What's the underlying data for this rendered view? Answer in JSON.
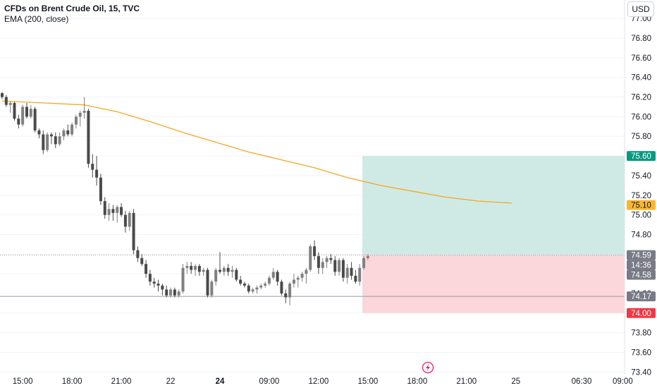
{
  "header": {
    "title": "CFDs on Brent Crude Oil, 15, TVC",
    "indicator": "EMA (200, close)"
  },
  "currency_button": "USD",
  "chart_data": {
    "type": "candlestick",
    "y_range": [
      73.35,
      77.05
    ],
    "y_ticks": [
      "77.00",
      "76.80",
      "76.60",
      "76.40",
      "76.20",
      "76.00",
      "75.80",
      "75.60",
      "75.40",
      "75.20",
      "75.00",
      "74.80",
      "74.60",
      "74.40",
      "74.20",
      "74.00",
      "73.80",
      "73.60",
      "73.40"
    ],
    "x_ticks": [
      {
        "label": "15:00",
        "bar": 5,
        "bold": false
      },
      {
        "label": "18:00",
        "bar": 17,
        "bold": false
      },
      {
        "label": "21:00",
        "bar": 29,
        "bold": false
      },
      {
        "label": "22",
        "bar": 41,
        "bold": false
      },
      {
        "label": "24",
        "bar": 53,
        "bold": true
      },
      {
        "label": "09:00",
        "bar": 65,
        "bold": false
      },
      {
        "label": "12:00",
        "bar": 77,
        "bold": false
      },
      {
        "label": "15:00",
        "bar": 89,
        "bold": false
      },
      {
        "label": "18:00",
        "bar": 101,
        "bold": false
      },
      {
        "label": "21:00",
        "bar": 113,
        "bold": false
      },
      {
        "label": "25",
        "bar": 125,
        "bold": false
      },
      {
        "label": "06:30",
        "bar": 141,
        "bold": false
      },
      {
        "label": "09:00",
        "bar": 151,
        "bold": false
      }
    ],
    "candles": [
      [
        76.24,
        76.25,
        76.18,
        76.2
      ],
      [
        76.2,
        76.22,
        76.1,
        76.12
      ],
      [
        76.12,
        76.16,
        76.04,
        76.14
      ],
      [
        76.14,
        76.15,
        75.96,
        75.98
      ],
      [
        75.98,
        76.02,
        75.88,
        75.92
      ],
      [
        75.92,
        76.12,
        75.9,
        76.1
      ],
      [
        76.1,
        76.14,
        75.98,
        76.0
      ],
      [
        76.0,
        76.12,
        75.98,
        76.08
      ],
      [
        76.08,
        76.1,
        75.84,
        75.86
      ],
      [
        75.86,
        75.88,
        75.78,
        75.82
      ],
      [
        75.82,
        75.86,
        75.62,
        75.66
      ],
      [
        75.66,
        75.84,
        75.64,
        75.82
      ],
      [
        75.82,
        75.84,
        75.72,
        75.8
      ],
      [
        75.8,
        75.84,
        75.68,
        75.72
      ],
      [
        75.72,
        75.84,
        75.7,
        75.8
      ],
      [
        75.8,
        75.88,
        75.76,
        75.86
      ],
      [
        75.86,
        75.92,
        75.8,
        75.82
      ],
      [
        75.82,
        75.94,
        75.8,
        75.92
      ],
      [
        75.92,
        76.02,
        75.88,
        76.0
      ],
      [
        76.0,
        76.06,
        75.9,
        76.04
      ],
      [
        76.04,
        76.2,
        75.98,
        76.06
      ],
      [
        76.06,
        76.08,
        75.48,
        75.52
      ],
      [
        75.52,
        75.62,
        75.38,
        75.46
      ],
      [
        75.46,
        75.6,
        75.3,
        75.38
      ],
      [
        75.38,
        75.42,
        75.1,
        75.14
      ],
      [
        75.14,
        75.18,
        74.96,
        75.0
      ],
      [
        75.0,
        75.12,
        74.94,
        75.06
      ],
      [
        75.06,
        75.1,
        74.94,
        75.02
      ],
      [
        75.02,
        75.1,
        74.92,
        75.08
      ],
      [
        75.08,
        75.12,
        74.98,
        75.0
      ],
      [
        75.0,
        75.04,
        74.82,
        74.88
      ],
      [
        74.88,
        75.04,
        74.84,
        75.02
      ],
      [
        75.02,
        75.06,
        74.6,
        74.64
      ],
      [
        74.64,
        74.68,
        74.52,
        74.56
      ],
      [
        74.56,
        74.6,
        74.48,
        74.5
      ],
      [
        74.5,
        74.54,
        74.36,
        74.4
      ],
      [
        74.4,
        74.44,
        74.28,
        74.32
      ],
      [
        74.32,
        74.36,
        74.26,
        74.3
      ],
      [
        74.3,
        74.34,
        74.22,
        74.28
      ],
      [
        74.28,
        74.3,
        74.18,
        74.24
      ],
      [
        74.24,
        74.28,
        74.16,
        74.18
      ],
      [
        74.18,
        74.26,
        74.16,
        74.24
      ],
      [
        74.24,
        74.26,
        74.16,
        74.18
      ],
      [
        74.18,
        74.24,
        74.16,
        74.22
      ],
      [
        74.22,
        74.5,
        74.2,
        74.46
      ],
      [
        74.46,
        74.52,
        74.4,
        74.48
      ],
      [
        74.48,
        74.52,
        74.4,
        74.44
      ],
      [
        74.44,
        74.5,
        74.38,
        74.48
      ],
      [
        74.48,
        74.5,
        74.38,
        74.42
      ],
      [
        74.42,
        74.46,
        74.38,
        74.44
      ],
      [
        74.44,
        74.46,
        74.16,
        74.18
      ],
      [
        74.18,
        74.34,
        74.16,
        74.32
      ],
      [
        74.32,
        74.46,
        74.28,
        74.44
      ],
      [
        74.44,
        74.62,
        74.4,
        74.42
      ],
      [
        74.42,
        74.48,
        74.38,
        74.46
      ],
      [
        74.46,
        74.5,
        74.38,
        74.42
      ],
      [
        74.42,
        74.48,
        74.36,
        74.44
      ],
      [
        74.44,
        74.46,
        74.32,
        74.34
      ],
      [
        74.34,
        74.38,
        74.28,
        74.3
      ],
      [
        74.3,
        74.32,
        74.26,
        74.28
      ],
      [
        74.28,
        74.3,
        74.2,
        74.22
      ],
      [
        74.22,
        74.26,
        74.2,
        74.24
      ],
      [
        74.24,
        74.28,
        74.2,
        74.26
      ],
      [
        74.26,
        74.3,
        74.24,
        74.28
      ],
      [
        74.28,
        74.32,
        74.26,
        74.3
      ],
      [
        74.3,
        74.38,
        74.28,
        74.36
      ],
      [
        74.36,
        74.46,
        74.34,
        74.42
      ],
      [
        74.42,
        74.44,
        74.28,
        74.32
      ],
      [
        74.32,
        74.34,
        74.18,
        74.2
      ],
      [
        74.2,
        74.24,
        74.1,
        74.16
      ],
      [
        74.16,
        74.32,
        74.08,
        74.3
      ],
      [
        74.3,
        74.4,
        74.26,
        74.34
      ],
      [
        74.34,
        74.38,
        74.26,
        74.36
      ],
      [
        74.36,
        74.42,
        74.32,
        74.4
      ],
      [
        74.4,
        74.46,
        74.3,
        74.44
      ],
      [
        74.44,
        74.7,
        74.42,
        74.68
      ],
      [
        74.68,
        74.74,
        74.54,
        74.58
      ],
      [
        74.58,
        74.62,
        74.4,
        74.46
      ],
      [
        74.46,
        74.56,
        74.4,
        74.52
      ],
      [
        74.52,
        74.58,
        74.46,
        74.56
      ],
      [
        74.56,
        74.6,
        74.5,
        74.54
      ],
      [
        74.54,
        74.58,
        74.38,
        74.42
      ],
      [
        74.42,
        74.56,
        74.38,
        74.54
      ],
      [
        74.54,
        74.56,
        74.32,
        74.36
      ],
      [
        74.36,
        74.5,
        74.3,
        74.46
      ],
      [
        74.46,
        74.52,
        74.34,
        74.38
      ],
      [
        74.38,
        74.44,
        74.3,
        74.32
      ],
      [
        74.32,
        74.5,
        74.28,
        74.46
      ],
      [
        74.46,
        74.58,
        74.44,
        74.56
      ],
      [
        74.56,
        74.6,
        74.54,
        74.58
      ]
    ],
    "ema_label": "EMA (200, close)",
    "ema": [
      [
        0,
        76.16
      ],
      [
        10,
        76.14
      ],
      [
        20,
        76.12
      ],
      [
        28,
        76.05
      ],
      [
        36,
        75.95
      ],
      [
        44,
        75.84
      ],
      [
        52,
        75.74
      ],
      [
        60,
        75.64
      ],
      [
        68,
        75.56
      ],
      [
        76,
        75.48
      ],
      [
        84,
        75.38
      ],
      [
        92,
        75.3
      ],
      [
        100,
        75.24
      ],
      [
        108,
        75.18
      ],
      [
        116,
        75.14
      ],
      [
        124,
        75.12
      ]
    ],
    "position": {
      "start_bar": 88,
      "target": 75.6,
      "entry": 74.59,
      "stop": 74.0
    },
    "hlines": [
      {
        "value": 74.59,
        "style": "dotted"
      },
      {
        "value": 74.17,
        "style": "solid"
      }
    ],
    "price_tags": [
      {
        "label": "75.60",
        "value": 75.6,
        "color": "#089981",
        "text": "light"
      },
      {
        "label": "75.10",
        "value": 75.1,
        "color": "#f7b731",
        "text": "dark"
      },
      {
        "label": "74.59",
        "value": 74.59,
        "color": "#787b86",
        "text": "light"
      },
      {
        "label": "14:36",
        "value": 74.49,
        "color": "#787b86",
        "text": "light"
      },
      {
        "label": "74.58",
        "value": 74.39,
        "color": "#787b86",
        "text": "light"
      },
      {
        "label": "74.17",
        "value": 74.17,
        "color": "#787b86",
        "text": "light"
      },
      {
        "label": "74.00",
        "value": 74.0,
        "color": "#f23645",
        "text": "light"
      }
    ],
    "colors": {
      "up": "#808080",
      "down": "#4a4a4a",
      "ema": "#f5a623",
      "profit": "#cfeae4",
      "loss": "#fbd6da",
      "grid": "#f0f3fa"
    }
  }
}
